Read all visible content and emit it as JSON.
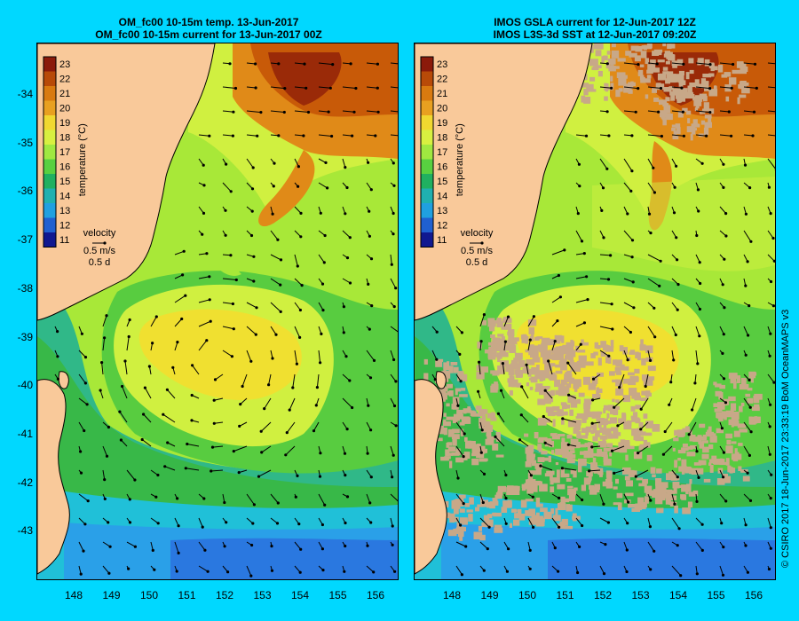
{
  "left_panel": {
    "title_line1": "OM_fc00 10-15m temp. 13-Jun-2017",
    "title_line2": "OM_fc00 10-15m current for 13-Jun-2017 00Z"
  },
  "right_panel": {
    "title_line1": "IMOS GSLA current for 12-Jun-2017 12Z",
    "title_line2": "IMOS L3S-3d SST at 12-Jun-2017 09:20Z"
  },
  "colorbar": {
    "ticks": [
      "23",
      "22",
      "21",
      "20",
      "19",
      "18",
      "17",
      "16",
      "15",
      "14",
      "13",
      "12",
      "11"
    ],
    "label": "temperature (°C)",
    "colors": [
      "#8b1a0a",
      "#b84a08",
      "#d97a10",
      "#e8a020",
      "#f0d830",
      "#d8f040",
      "#a0e840",
      "#58d040",
      "#20b060",
      "#20b0b0",
      "#20a0e0",
      "#2060d0",
      "#101890"
    ]
  },
  "velocity_legend": {
    "title": "velocity",
    "speed": "0.5 m/s",
    "duration": "0.5 d"
  },
  "y_axis": [
    "-34",
    "-35",
    "-36",
    "-37",
    "-38",
    "-39",
    "-40",
    "-41",
    "-42",
    "-43"
  ],
  "x_axis": [
    "148",
    "149",
    "150",
    "151",
    "152",
    "153",
    "154",
    "155",
    "156"
  ],
  "credit": "© CSIRO 2017   18-Jun-2017 23:33:19 BoM OceanMAPS v3",
  "colors": {
    "background": "#00d8ff",
    "land": "#f9c99a",
    "cloud": "#c8a888"
  }
}
